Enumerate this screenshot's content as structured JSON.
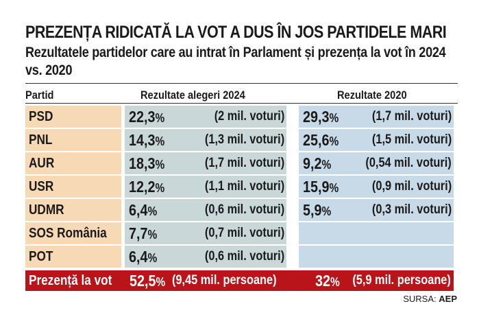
{
  "title": "PREZENȚA RIDICATĂ LA VOT A DUS ÎN JOS PARTIDELE MARI",
  "subtitle": "Rezultatele partidelor care au intrat în Parlament și prezența la vot în 2024 vs. 2020",
  "headers": {
    "party": "Partid",
    "results_2024": "Rezultate alegeri 2024",
    "results_2020": "Rezultate 2020"
  },
  "percent_sign": "%",
  "rows": [
    {
      "party": "PSD",
      "pct_2024": "22,3",
      "votes_2024": "(2 mil. voturi)",
      "pct_2020": "29,3",
      "votes_2020": "(1,7 mil. voturi)"
    },
    {
      "party": "PNL",
      "pct_2024": "14,3",
      "votes_2024": "(1,3 mil. voturi)",
      "pct_2020": "25,6",
      "votes_2020": "(1,5 mil. voturi)"
    },
    {
      "party": "AUR",
      "pct_2024": "18,3",
      "votes_2024": "(1,7 mil. voturi)",
      "pct_2020": "9,2",
      "votes_2020": "(0,54 mil. voturi)"
    },
    {
      "party": "USR",
      "pct_2024": "12,2",
      "votes_2024": "(1,1 mil. voturi)",
      "pct_2020": "15,9",
      "votes_2020": "(0,9 mil. voturi)"
    },
    {
      "party": "UDMR",
      "pct_2024": "6,4",
      "votes_2024": "(0,6 mil. voturi)",
      "pct_2020": "5,9",
      "votes_2020": "(0,3 mil. voturi)"
    },
    {
      "party": "SOS România",
      "pct_2024": "7,7",
      "votes_2024": "(0,7 mil. voturi)",
      "pct_2020": "",
      "votes_2020": ""
    },
    {
      "party": "POT",
      "pct_2024": "6,4",
      "votes_2024": "(0,6 mil. voturi)",
      "pct_2020": "",
      "votes_2020": ""
    }
  ],
  "turnout": {
    "label": "Prezență la vot",
    "pct_2024": "52,5",
    "people_2024": "(9,45 mil. persoane)",
    "pct_2020": "32",
    "people_2020": "(5,9 mil. persoane)"
  },
  "source": {
    "label": "SURSA:",
    "value": "AEP"
  },
  "colors": {
    "party_bg": "#f7d9b6",
    "col2024_bg": "#c9d7d8",
    "col2020_bg": "#c8d9e7",
    "turnout_bg": "#b8141a"
  }
}
